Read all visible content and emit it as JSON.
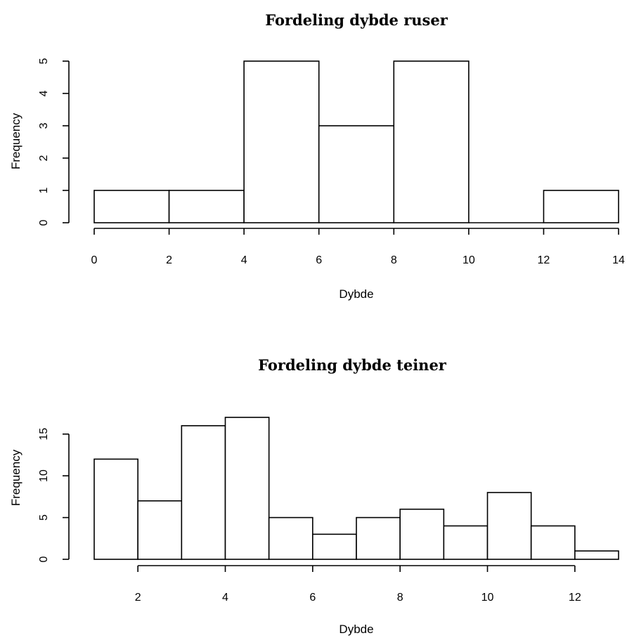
{
  "chart_data": [
    {
      "type": "bar",
      "title": "Fordeling dybde ruser",
      "xlabel": "Dybde",
      "ylabel": "Frequency",
      "bins": [
        [
          0,
          2
        ],
        [
          2,
          4
        ],
        [
          4,
          6
        ],
        [
          6,
          8
        ],
        [
          8,
          10
        ],
        [
          10,
          12
        ],
        [
          12,
          14
        ]
      ],
      "values": [
        1,
        1,
        5,
        3,
        5,
        0,
        1
      ],
      "xlim": [
        0,
        14
      ],
      "ylim": [
        0,
        5
      ],
      "xticks": [
        0,
        2,
        4,
        6,
        8,
        10,
        12,
        14
      ],
      "yticks": [
        0,
        1,
        2,
        3,
        4,
        5
      ],
      "grid": false
    },
    {
      "type": "bar",
      "title": "Fordeling dybde teiner",
      "xlabel": "Dybde",
      "ylabel": "Frequency",
      "bins": [
        [
          1,
          2
        ],
        [
          2,
          3
        ],
        [
          3,
          4
        ],
        [
          4,
          5
        ],
        [
          5,
          6
        ],
        [
          6,
          7
        ],
        [
          7,
          8
        ],
        [
          8,
          9
        ],
        [
          9,
          10
        ],
        [
          10,
          11
        ],
        [
          11,
          12
        ],
        [
          12,
          13
        ]
      ],
      "values": [
        12,
        7,
        16,
        17,
        5,
        3,
        5,
        6,
        4,
        8,
        4,
        1
      ],
      "xlim": [
        1,
        13
      ],
      "ylim": [
        0,
        17
      ],
      "xticks": [
        2,
        4,
        6,
        8,
        10,
        12
      ],
      "yticks": [
        0,
        5,
        10,
        15
      ],
      "grid": false
    }
  ]
}
